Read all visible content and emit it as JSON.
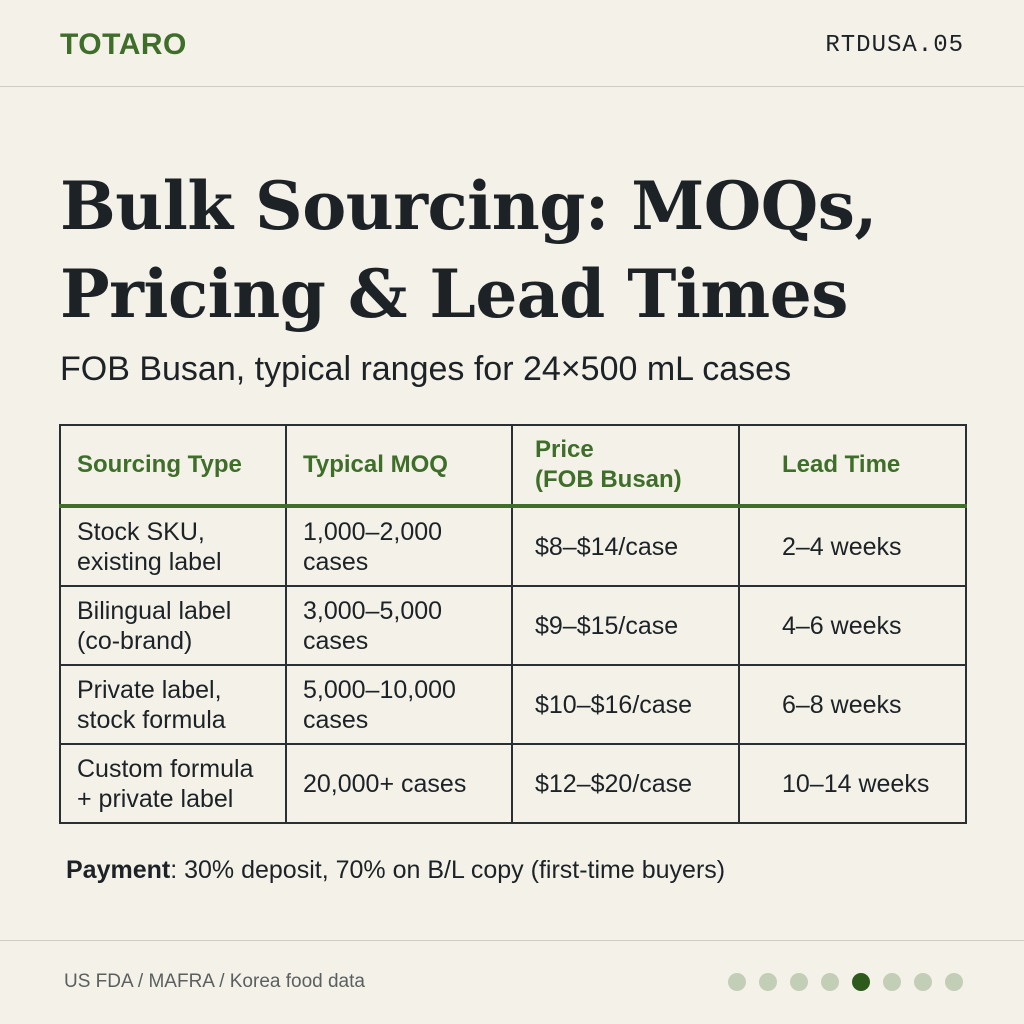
{
  "header": {
    "brand": "TOTARO",
    "code": "RTDUSA.05"
  },
  "title_line1": "Bulk Sourcing: MOQs,",
  "title_line2": "Pricing & Lead Times",
  "subtitle": "FOB Busan, typical ranges for 24×500 mL cases",
  "table": {
    "headers": [
      "Sourcing Type",
      "Typical MOQ",
      "Price\n(FOB Busan)",
      "Lead Time"
    ],
    "rows": [
      [
        "Stock SKU,\nexisting label",
        "1,000–2,000\ncases",
        "$8–$14/case",
        "2–4 weeks"
      ],
      [
        "Bilingual label\n(co-brand)",
        "3,000–5,000\ncases",
        "$9–$15/case",
        "4–6 weeks"
      ],
      [
        "Private label,\nstock formula",
        "5,000–10,000\ncases",
        "$10–$16/case",
        "6–8 weeks"
      ],
      [
        "Custom formula\n+ private label",
        "20,000+ cases",
        "$12–$20/case",
        "10–14 weeks"
      ]
    ]
  },
  "payment": {
    "label": "Payment",
    "text": ": 30% deposit, 70% on B/L copy (first-time buyers)"
  },
  "footer": {
    "source": "US FDA / MAFRA / Korea food data"
  },
  "pagination": {
    "total": 8,
    "current": 5
  },
  "colors": {
    "accent": "#3f6e2a",
    "background": "#f3f1e8",
    "dot_active": "#2f5a1e",
    "dot_inactive": "#c3ceb6"
  }
}
